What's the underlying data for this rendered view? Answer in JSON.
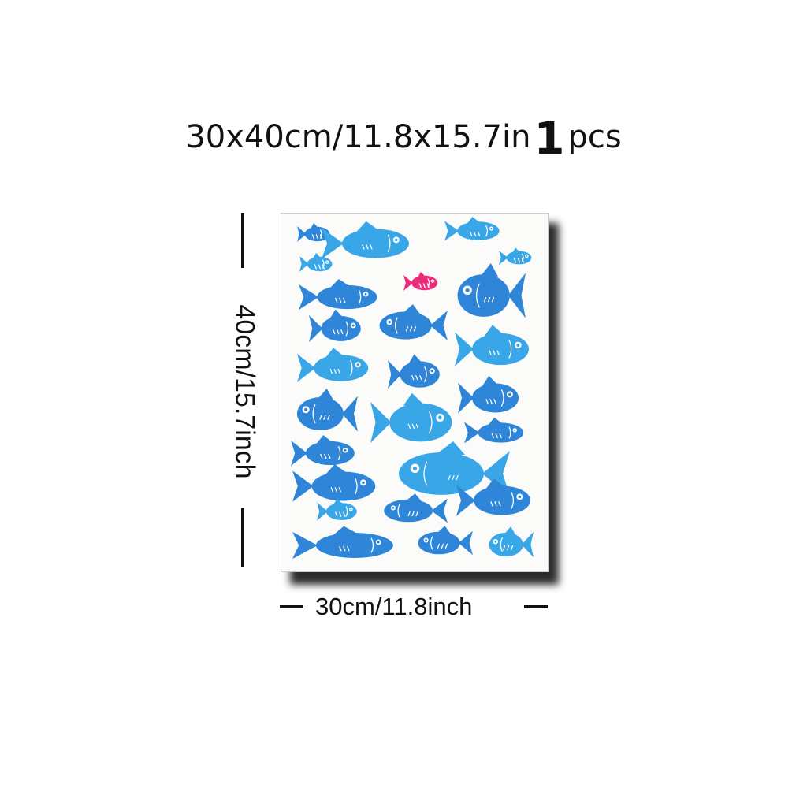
{
  "product": {
    "size_text": "30x40cm/11.8x15.7in",
    "quantity": "1",
    "quantity_unit": "pcs"
  },
  "dimensions": {
    "height_label": "40cm/15.7inch",
    "width_label": "30cm/11.8inch"
  },
  "poster": {
    "artwork": "fish",
    "colors": {
      "blue": "#2f86d8",
      "light_blue": "#39a6e8",
      "pink": "#ee2a7b"
    },
    "fish_count": 27
  }
}
